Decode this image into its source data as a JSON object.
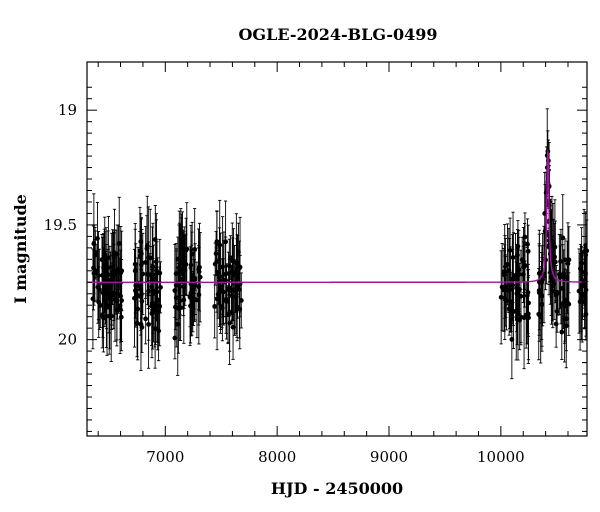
{
  "chart_data": {
    "type": "scatter",
    "title": "OGLE-2024-BLG-0499",
    "xlabel": "HJD - 2450000",
    "ylabel": "I magnitude",
    "xlim": [
      6300,
      10770
    ],
    "ylim": [
      20.42,
      18.79
    ],
    "y_inverted": true,
    "x_ticks": [
      7000,
      8000,
      9000,
      10000
    ],
    "y_ticks": [
      19,
      19.5,
      20
    ],
    "x_tick_labels": [
      "7000",
      "8000",
      "9000",
      "10000"
    ],
    "y_tick_labels": [
      "19",
      "19.5",
      "20"
    ],
    "grid": false,
    "legend": "none",
    "observing_seasons": [
      {
        "start": 6350,
        "end": 6620
      },
      {
        "start": 6720,
        "end": 6960
      },
      {
        "start": 7080,
        "end": 7320
      },
      {
        "start": 7440,
        "end": 7680
      },
      {
        "start": 10000,
        "end": 10250
      },
      {
        "start": 10330,
        "end": 10610
      },
      {
        "start": 10690,
        "end": 10770
      }
    ],
    "baseline_magnitude": 19.75,
    "typical_scatter_mag": 0.12,
    "typical_error_mag": 0.15,
    "peak_observed": [
      {
        "x": 10405,
        "y": 19.36
      },
      {
        "x": 10415,
        "y": 19.25
      },
      {
        "x": 10420,
        "y": 19.18
      },
      {
        "x": 10425,
        "y": 19.22
      },
      {
        "x": 10430,
        "y": 19.33
      },
      {
        "x": 10440,
        "y": 19.48
      }
    ],
    "series": [
      {
        "type": "model",
        "color": "#a0159f",
        "baseline": 19.75,
        "t0": 10420,
        "peak_mag": 19.18,
        "tE": 12
      }
    ],
    "colors": {
      "points": "#000000",
      "errorbars": "#000000",
      "model": "#a0159f",
      "frame": "#000000"
    }
  }
}
